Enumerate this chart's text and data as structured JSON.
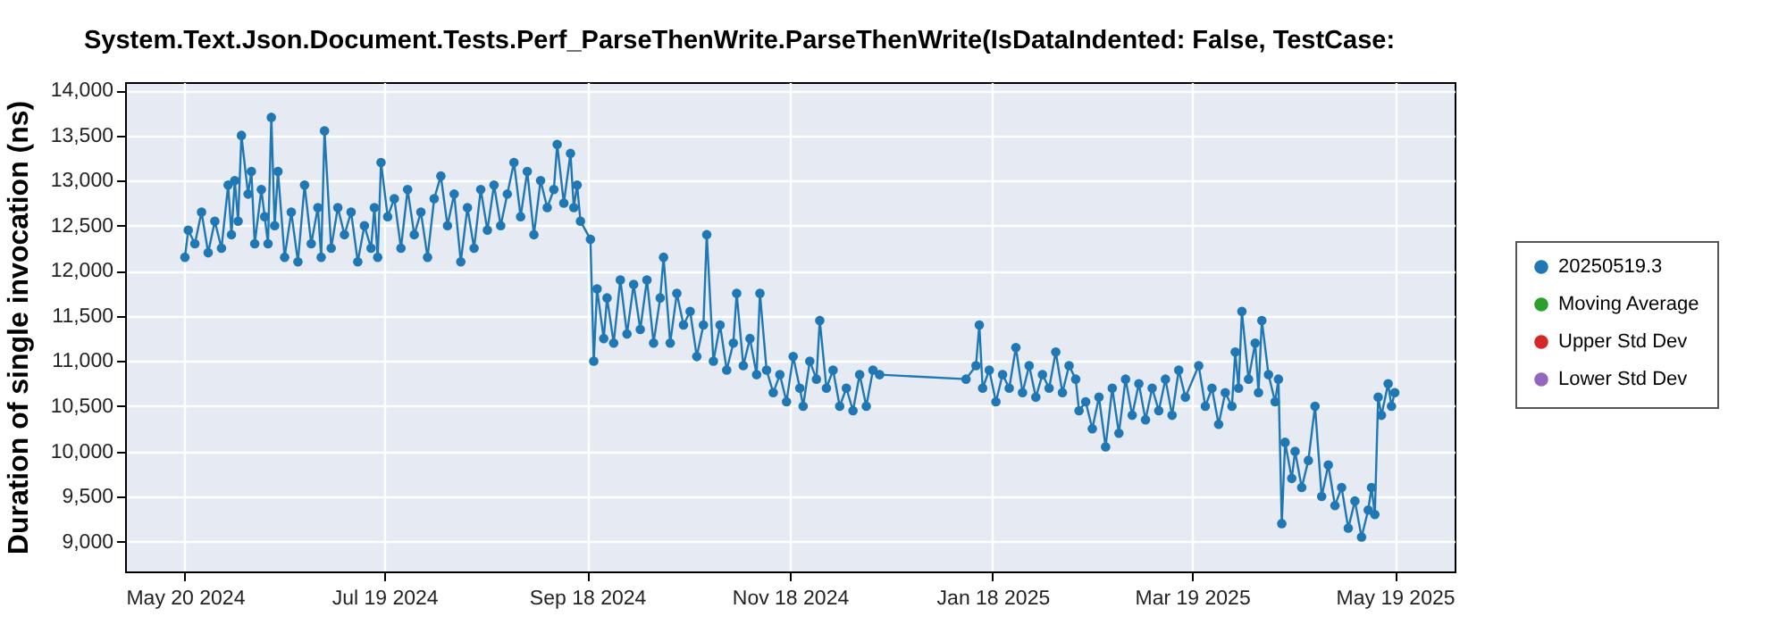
{
  "chart_data": {
    "type": "line",
    "title": "System.Text.Json.Document.Tests.Perf_ParseThenWrite.ParseThenWrite(IsDataIndented: False, TestCase:",
    "ylabel": "Duration of single invocation (ns)",
    "xlim": [
      "2024-05-02",
      "2025-06-06"
    ],
    "xticks": [
      {
        "value": "2024-05-20",
        "label": "May 20 2024"
      },
      {
        "value": "2024-07-19",
        "label": "Jul 19 2024"
      },
      {
        "value": "2024-09-18",
        "label": "Sep 18 2024"
      },
      {
        "value": "2024-11-18",
        "label": "Nov 18 2024"
      },
      {
        "value": "2025-01-18",
        "label": "Jan 18 2025"
      },
      {
        "value": "2025-03-19",
        "label": "Mar 19 2025"
      },
      {
        "value": "2025-05-19",
        "label": "May 19 2025"
      }
    ],
    "ylim": [
      8670,
      14090
    ],
    "yticks": [
      {
        "value": 9000,
        "label": "9,000"
      },
      {
        "value": 9500,
        "label": "9,500"
      },
      {
        "value": 10000,
        "label": "10,000"
      },
      {
        "value": 10500,
        "label": "10,500"
      },
      {
        "value": 11000,
        "label": "11,000"
      },
      {
        "value": 11500,
        "label": "11,500"
      },
      {
        "value": 12000,
        "label": "12,000"
      },
      {
        "value": 12500,
        "label": "12,500"
      },
      {
        "value": 13000,
        "label": "13,000"
      },
      {
        "value": 13500,
        "label": "13,500"
      },
      {
        "value": 14000,
        "label": "14,000"
      }
    ],
    "grid": true,
    "legend": "right",
    "marker": "circle",
    "line_style": "solid",
    "series": [
      {
        "name": "20250519.3",
        "color": "#1f77b4",
        "x": [
          "2024-05-20",
          "2024-05-21",
          "2024-05-23",
          "2024-05-25",
          "2024-05-27",
          "2024-05-29",
          "2024-05-31",
          "2024-06-02",
          "2024-06-03",
          "2024-06-04",
          "2024-06-05",
          "2024-06-06",
          "2024-06-08",
          "2024-06-09",
          "2024-06-10",
          "2024-06-12",
          "2024-06-13",
          "2024-06-14",
          "2024-06-15",
          "2024-06-16",
          "2024-06-17",
          "2024-06-19",
          "2024-06-21",
          "2024-06-23",
          "2024-06-25",
          "2024-06-27",
          "2024-06-29",
          "2024-06-30",
          "2024-07-01",
          "2024-07-03",
          "2024-07-05",
          "2024-07-07",
          "2024-07-09",
          "2024-07-11",
          "2024-07-13",
          "2024-07-15",
          "2024-07-16",
          "2024-07-17",
          "2024-07-18",
          "2024-07-20",
          "2024-07-22",
          "2024-07-24",
          "2024-07-26",
          "2024-07-28",
          "2024-07-30",
          "2024-08-01",
          "2024-08-03",
          "2024-08-05",
          "2024-08-07",
          "2024-08-09",
          "2024-08-11",
          "2024-08-13",
          "2024-08-15",
          "2024-08-17",
          "2024-08-19",
          "2024-08-21",
          "2024-08-23",
          "2024-08-25",
          "2024-08-27",
          "2024-08-29",
          "2024-08-31",
          "2024-09-02",
          "2024-09-04",
          "2024-09-06",
          "2024-09-08",
          "2024-09-09",
          "2024-09-11",
          "2024-09-13",
          "2024-09-14",
          "2024-09-15",
          "2024-09-16",
          "2024-09-19",
          "2024-09-20",
          "2024-09-21",
          "2024-09-23",
          "2024-09-24",
          "2024-09-26",
          "2024-09-28",
          "2024-09-30",
          "2024-10-02",
          "2024-10-04",
          "2024-10-06",
          "2024-10-08",
          "2024-10-10",
          "2024-10-11",
          "2024-10-13",
          "2024-10-15",
          "2024-10-17",
          "2024-10-19",
          "2024-10-21",
          "2024-10-23",
          "2024-10-24",
          "2024-10-26",
          "2024-10-28",
          "2024-10-30",
          "2024-11-01",
          "2024-11-02",
          "2024-11-04",
          "2024-11-06",
          "2024-11-08",
          "2024-11-09",
          "2024-11-11",
          "2024-11-13",
          "2024-11-15",
          "2024-11-17",
          "2024-11-19",
          "2024-11-21",
          "2024-11-22",
          "2024-11-24",
          "2024-11-26",
          "2024-11-27",
          "2024-11-29",
          "2024-12-01",
          "2024-12-03",
          "2024-12-05",
          "2024-12-07",
          "2024-12-09",
          "2024-12-11",
          "2024-12-13",
          "2024-12-15",
          "2025-01-10",
          "2025-01-13",
          "2025-01-14",
          "2025-01-15",
          "2025-01-17",
          "2025-01-19",
          "2025-01-21",
          "2025-01-23",
          "2025-01-25",
          "2025-01-27",
          "2025-01-29",
          "2025-01-31",
          "2025-02-02",
          "2025-02-04",
          "2025-02-06",
          "2025-02-08",
          "2025-02-10",
          "2025-02-12",
          "2025-02-13",
          "2025-02-15",
          "2025-02-17",
          "2025-02-19",
          "2025-02-21",
          "2025-02-23",
          "2025-02-25",
          "2025-02-27",
          "2025-03-01",
          "2025-03-03",
          "2025-03-05",
          "2025-03-07",
          "2025-03-09",
          "2025-03-11",
          "2025-03-13",
          "2025-03-15",
          "2025-03-17",
          "2025-03-21",
          "2025-03-23",
          "2025-03-25",
          "2025-03-27",
          "2025-03-29",
          "2025-03-31",
          "2025-04-01",
          "2025-04-02",
          "2025-04-03",
          "2025-04-05",
          "2025-04-07",
          "2025-04-08",
          "2025-04-09",
          "2025-04-11",
          "2025-04-13",
          "2025-04-14",
          "2025-04-15",
          "2025-04-16",
          "2025-04-18",
          "2025-04-19",
          "2025-04-21",
          "2025-04-23",
          "2025-04-25",
          "2025-04-27",
          "2025-04-29",
          "2025-05-01",
          "2025-05-03",
          "2025-05-05",
          "2025-05-07",
          "2025-05-09",
          "2025-05-11",
          "2025-05-12",
          "2025-05-13",
          "2025-05-14",
          "2025-05-15",
          "2025-05-17",
          "2025-05-18",
          "2025-05-19"
        ],
        "values": [
          12150,
          12450,
          12300,
          12650,
          12200,
          12550,
          12250,
          12950,
          12400,
          13000,
          12550,
          13500,
          12850,
          13100,
          12300,
          12900,
          12600,
          12300,
          13700,
          12500,
          13100,
          12150,
          12650,
          12100,
          12950,
          12300,
          12700,
          12150,
          13550,
          12250,
          12700,
          12400,
          12650,
          12100,
          12500,
          12250,
          12700,
          12150,
          13200,
          12600,
          12800,
          12250,
          12900,
          12400,
          12650,
          12150,
          12800,
          13050,
          12500,
          12850,
          12100,
          12700,
          12250,
          12900,
          12450,
          12950,
          12500,
          12850,
          13200,
          12600,
          13100,
          12400,
          13000,
          12700,
          12900,
          13400,
          12750,
          13300,
          12700,
          12950,
          12550,
          12350,
          11000,
          11800,
          11250,
          11700,
          11200,
          11900,
          11300,
          11850,
          11350,
          11900,
          11200,
          11700,
          12150,
          11200,
          11750,
          11400,
          11550,
          11050,
          11400,
          12400,
          11000,
          11400,
          10900,
          11200,
          11750,
          10950,
          11250,
          10850,
          11750,
          10900,
          10650,
          10850,
          10550,
          11050,
          10700,
          10500,
          11000,
          10800,
          11450,
          10700,
          10900,
          10500,
          10700,
          10450,
          10850,
          10500,
          10900,
          10850,
          10800,
          10950,
          11400,
          10700,
          10900,
          10550,
          10850,
          10700,
          11150,
          10650,
          10950,
          10600,
          10850,
          10700,
          11100,
          10650,
          10950,
          10800,
          10450,
          10550,
          10250,
          10600,
          10050,
          10700,
          10200,
          10800,
          10400,
          10750,
          10350,
          10700,
          10450,
          10800,
          10400,
          10900,
          10600,
          10950,
          10500,
          10700,
          10300,
          10650,
          10500,
          11100,
          10700,
          11550,
          10800,
          11200,
          10650,
          11450,
          10850,
          10550,
          10800,
          9200,
          10100,
          9700,
          10000,
          9600,
          9900,
          10500,
          9500,
          9850,
          9400,
          9600,
          9150,
          9450,
          9050,
          9350,
          9600,
          9300,
          10600,
          10400,
          10750,
          10500,
          10650
        ],
        "errors": [
          null,
          null,
          null,
          null,
          null,
          null,
          null,
          null,
          null,
          null,
          null,
          null,
          null,
          null,
          null,
          null,
          null,
          null,
          50,
          null,
          null,
          null,
          null,
          null,
          null,
          null,
          null,
          null,
          null,
          null,
          null,
          null,
          null,
          null,
          null,
          null,
          null,
          null,
          null,
          null,
          null,
          null,
          null,
          null,
          null,
          null,
          null,
          null,
          null,
          null,
          null,
          null,
          null,
          null,
          null,
          null,
          null,
          null,
          50,
          null,
          null,
          null,
          null,
          null,
          null,
          null,
          null,
          null,
          null,
          null,
          null,
          50,
          null,
          null,
          null,
          null,
          null,
          null,
          null,
          null,
          null,
          null,
          null,
          null,
          null,
          null,
          null,
          null,
          null,
          null,
          null,
          null,
          null,
          null,
          null,
          null,
          null,
          null,
          null,
          null,
          null,
          null,
          null,
          null,
          null,
          null,
          null,
          null,
          null,
          null,
          50,
          null,
          null,
          null,
          null,
          null,
          null,
          null,
          null,
          null,
          null,
          null,
          null,
          null,
          null,
          null,
          null,
          null,
          null,
          null,
          null,
          null,
          null,
          null,
          null,
          null,
          null,
          null,
          null,
          null,
          null,
          null,
          null,
          null,
          null,
          null,
          null,
          null,
          null,
          null,
          null,
          null,
          null,
          null,
          null,
          null,
          null,
          null,
          null,
          null,
          null,
          null,
          null,
          null,
          null,
          null,
          null,
          null,
          null,
          null,
          null,
          null,
          null,
          null,
          null,
          null,
          null,
          null,
          null,
          null,
          null,
          null,
          null,
          null,
          null,
          null,
          null,
          null,
          null,
          null,
          null,
          null,
          null
        ]
      },
      {
        "name": "Moving Average",
        "color": "#2ca02c"
      },
      {
        "name": "Upper Std Dev",
        "color": "#d62728"
      },
      {
        "name": "Lower Std Dev",
        "color": "#9467bd"
      }
    ]
  }
}
